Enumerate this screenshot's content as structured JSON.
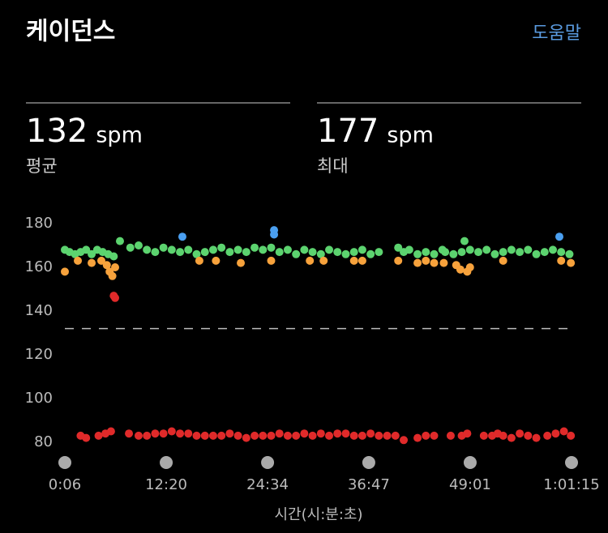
{
  "header": {
    "title": "케이던스",
    "help": "도움말"
  },
  "stats": [
    {
      "value": 132,
      "unit": "spm",
      "label": "평균"
    },
    {
      "value": 177,
      "unit": "spm",
      "label": "최대"
    }
  ],
  "chart_data": {
    "type": "scatter",
    "x_label": "시간(시:분:초)",
    "xlim": [
      6,
      3675
    ],
    "ylim": [
      80,
      180
    ],
    "xticks": [
      {
        "value": 6,
        "label": "0:06"
      },
      {
        "value": 740,
        "label": "12:20"
      },
      {
        "value": 1474,
        "label": "24:34"
      },
      {
        "value": 2207,
        "label": "36:47"
      },
      {
        "value": 2941,
        "label": "49:01"
      },
      {
        "value": 3675,
        "label": "1:01:15"
      }
    ],
    "yticks": [
      80,
      100,
      120,
      140,
      160,
      180
    ],
    "series": [
      {
        "color": "#5cd36f",
        "x": [
          6,
          40,
          80,
          120,
          160,
          200,
          240,
          280,
          320,
          360,
          405,
          480,
          540,
          600,
          660,
          720,
          780,
          840,
          900,
          960,
          1020,
          1080,
          1140,
          1200,
          1260,
          1320,
          1380,
          1440,
          1500,
          1560,
          1620,
          1680,
          1740,
          1800,
          1860,
          1920,
          1980,
          2040,
          2100,
          2160,
          2220,
          2280,
          2420,
          2460,
          2500,
          2560,
          2620,
          2680,
          2740,
          2760,
          2820,
          2880,
          2900,
          2940,
          3000,
          3060,
          3120,
          3180,
          3240,
          3300,
          3360,
          3420,
          3480,
          3540,
          3600,
          3660
        ],
        "values": [
          168,
          167,
          166,
          167,
          168,
          166,
          168,
          167,
          166,
          165,
          172,
          169,
          170,
          168,
          167,
          169,
          168,
          167,
          168,
          166,
          167,
          168,
          169,
          167,
          168,
          167,
          169,
          168,
          169,
          167,
          168,
          166,
          168,
          167,
          166,
          168,
          167,
          166,
          167,
          168,
          166,
          167,
          169,
          167,
          168,
          166,
          167,
          166,
          168,
          167,
          166,
          167,
          172,
          168,
          167,
          168,
          166,
          167,
          168,
          167,
          168,
          166,
          167,
          168,
          167,
          166
        ]
      },
      {
        "color": "#f7a23c",
        "x": [
          6,
          100,
          200,
          270,
          310,
          330,
          350,
          370,
          980,
          1100,
          1280,
          1500,
          1780,
          1880,
          2100,
          2160,
          2420,
          2560,
          2620,
          2680,
          2750,
          2840,
          2870,
          2920,
          2940,
          3180,
          3600,
          3670
        ],
        "values": [
          158,
          163,
          162,
          163,
          161,
          158,
          156,
          160,
          163,
          163,
          162,
          163,
          163,
          163,
          163,
          163,
          163,
          162,
          163,
          162,
          162,
          161,
          159,
          158,
          160,
          163,
          163,
          162
        ]
      },
      {
        "color": "#e02a2a",
        "x": [
          360,
          370,
          120,
          160,
          250,
          300,
          340,
          470,
          540,
          600,
          660,
          720,
          780,
          840,
          900,
          960,
          1020,
          1080,
          1140,
          1200,
          1260,
          1320,
          1380,
          1440,
          1500,
          1560,
          1620,
          1680,
          1740,
          1800,
          1860,
          1920,
          1980,
          2040,
          2100,
          2160,
          2220,
          2280,
          2340,
          2400,
          2460,
          2560,
          2620,
          2680,
          2800,
          2880,
          2920,
          3040,
          3100,
          3140,
          3180,
          3240,
          3300,
          3360,
          3420,
          3500,
          3560,
          3620,
          3670
        ],
        "values": [
          147,
          146,
          83,
          82,
          83,
          84,
          85,
          84,
          83,
          83,
          84,
          84,
          85,
          84,
          84,
          83,
          83,
          83,
          83,
          84,
          83,
          82,
          83,
          83,
          83,
          84,
          83,
          83,
          84,
          83,
          84,
          83,
          84,
          84,
          83,
          83,
          84,
          83,
          83,
          83,
          81,
          82,
          83,
          83,
          83,
          83,
          84,
          83,
          83,
          84,
          83,
          82,
          84,
          83,
          82,
          83,
          84,
          85,
          83
        ]
      },
      {
        "color": "#4a9ff0",
        "x": [
          857,
          1521,
          1521,
          3587
        ],
        "values": [
          174,
          177,
          175,
          174
        ]
      }
    ]
  }
}
